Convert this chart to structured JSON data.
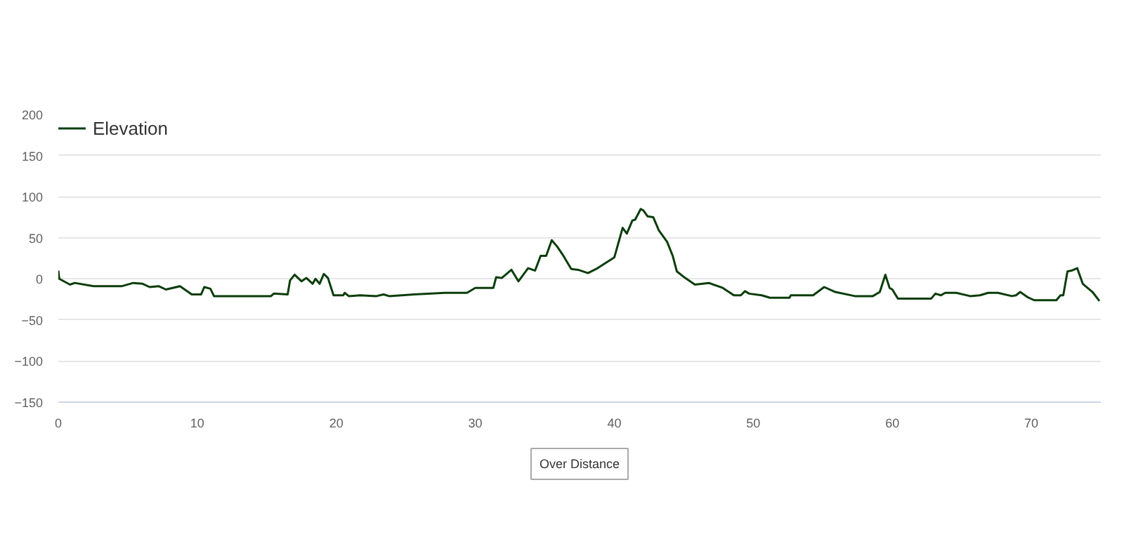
{
  "chart_data": {
    "type": "line",
    "xlim": [
      0,
      75
    ],
    "xticks": [
      0,
      10,
      20,
      30,
      40,
      50,
      60,
      70
    ],
    "ylim": [
      -150,
      200
    ],
    "yticks": [
      -150,
      -100,
      -50,
      0,
      50,
      100,
      150,
      200
    ],
    "grid": "y",
    "legend": "top left",
    "marker": "none",
    "line_style": "solid",
    "annotations": [
      "Over Distance"
    ],
    "series": [
      {
        "name": "Elevation",
        "color": "#0b3d0b",
        "x": [
          0,
          0.07,
          0.84,
          1.18,
          2.53,
          4.55,
          5.39,
          6.06,
          6.57,
          7.24,
          7.74,
          8.75,
          9.6,
          10.27,
          10.5,
          10.94,
          11.2,
          15.3,
          15.5,
          16.5,
          16.67,
          17.0,
          17.5,
          17.85,
          18.3,
          18.5,
          18.8,
          19.1,
          19.4,
          19.8,
          20.5,
          20.6,
          20.9,
          21.7,
          22.9,
          23.4,
          23.8,
          25.6,
          27.8,
          29.4,
          30,
          31.3,
          31.5,
          31.9,
          32.6,
          33.1,
          33.8,
          34.3,
          34.7,
          35.1,
          35.5,
          35.9,
          36.3,
          36.9,
          37.4,
          38.1,
          38.8,
          40,
          40.6,
          40.9,
          41.3,
          41.5,
          41.9,
          42.1,
          42.4,
          42.8,
          43.2,
          43.8,
          44.2,
          44.5,
          45.1,
          45.8,
          46.8,
          47.8,
          48.6,
          49.1,
          49.4,
          49.7,
          50.6,
          51.2,
          52.6,
          52.7,
          54.3,
          55.1,
          55.9,
          57.3,
          58.6,
          59.1,
          59.5,
          59.8,
          60.0,
          60.4,
          62.8,
          63.1,
          63.5,
          63.8,
          64.6,
          65.6,
          66.3,
          66.9,
          67.6,
          68.6,
          68.9,
          69.2,
          69.7,
          70.2,
          71.8,
          72.1,
          72.3,
          72.6,
          72.9,
          73.3,
          73.7,
          74.4,
          74.9
        ],
        "values": [
          10,
          0,
          -7,
          -5,
          -9,
          -9,
          -5,
          -6,
          -10,
          -9,
          -13,
          -9,
          -19,
          -19,
          -10,
          -12,
          -21,
          -21,
          -18,
          -19,
          -2,
          5,
          -3,
          1,
          -6,
          0,
          -6,
          6,
          1,
          -20,
          -20,
          -17,
          -21,
          -20,
          -21,
          -19,
          -21,
          -19,
          -17,
          -17,
          -11,
          -11,
          2,
          1,
          11,
          -3,
          13,
          10,
          28,
          28,
          47,
          39,
          29,
          12,
          11,
          7,
          13,
          26,
          62,
          55,
          71,
          72,
          85,
          83,
          76,
          75,
          59,
          45,
          28,
          9,
          1,
          -7,
          -5,
          -11,
          -20,
          -20,
          -15,
          -18,
          -20,
          -23,
          -23,
          -20,
          -20,
          -10,
          -16,
          -21,
          -21,
          -16,
          5,
          -11,
          -13,
          -24,
          -24,
          -18,
          -20,
          -17,
          -17,
          -21,
          -20,
          -17,
          -17,
          -21,
          -20,
          -16,
          -22,
          -26,
          -26,
          -20,
          -20,
          9,
          10,
          13,
          -6,
          -16,
          -27
        ]
      }
    ]
  }
}
